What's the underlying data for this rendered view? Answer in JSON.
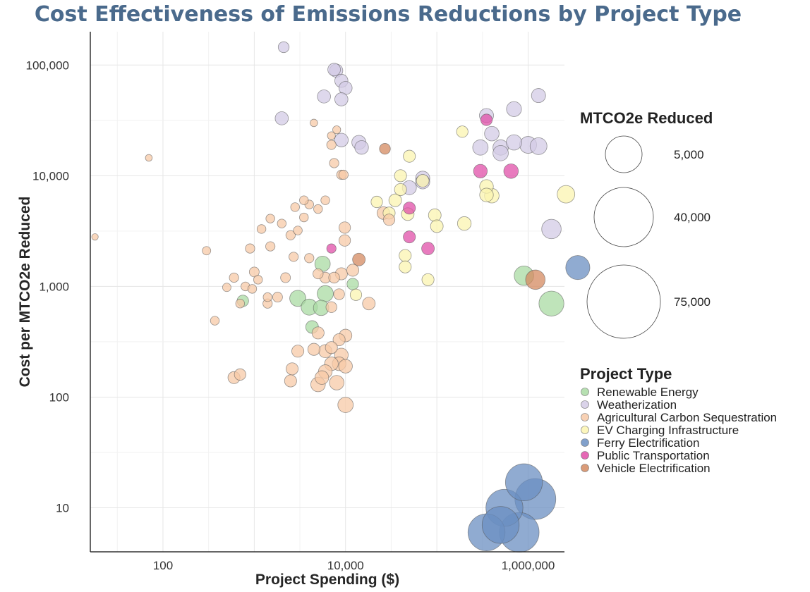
{
  "chart_data": {
    "type": "scatter",
    "title": "Cost Effectiveness of Emissions Reductions by Project Type",
    "xlabel": "Project Spending ($)",
    "ylabel": "Cost per MTCO2e Reduced",
    "x_scale": "log",
    "y_scale": "log",
    "xlim": [
      16,
      2500000
    ],
    "ylim": [
      4,
      200000
    ],
    "x_ticks": [
      {
        "value": 100,
        "label": "100"
      },
      {
        "value": 10000,
        "label": "10,000"
      },
      {
        "value": 1000000,
        "label": "1,000,000"
      }
    ],
    "y_ticks": [
      {
        "value": 10,
        "label": "10"
      },
      {
        "value": 100,
        "label": "100"
      },
      {
        "value": 1000,
        "label": "1,000"
      },
      {
        "value": 10000,
        "label": "10,000"
      },
      {
        "value": 100000,
        "label": "100,000"
      }
    ],
    "grid": true,
    "size_legend": {
      "title": "MTCO2e Reduced",
      "entries": [
        {
          "value": 5000,
          "label": "5,000"
        },
        {
          "value": 40000,
          "label": "40,000"
        },
        {
          "value": 75000,
          "label": "75,000"
        }
      ]
    },
    "color_legend_title": "Project Type",
    "series": [
      {
        "name": "Renewable Energy",
        "color": "#a9dba3",
        "points": [
          [
            3000,
            780,
            800
          ],
          [
            4000,
            650,
            800
          ],
          [
            5400,
            640,
            700
          ],
          [
            6000,
            860,
            800
          ],
          [
            5600,
            1600,
            700
          ],
          [
            4300,
            430,
            400
          ],
          [
            750,
            740,
            300
          ],
          [
            12000,
            1050,
            300
          ],
          [
            900000,
            1250,
            1300
          ],
          [
            1800000,
            700,
            2400
          ]
        ]
      },
      {
        "name": "Weatherization",
        "color": "#d3cbe5",
        "points": [
          [
            2100,
            145000,
            250
          ],
          [
            7900,
            89000,
            450
          ],
          [
            7500,
            91000,
            400
          ],
          [
            9000,
            72000,
            450
          ],
          [
            10000,
            62000,
            450
          ],
          [
            5800,
            52000,
            450
          ],
          [
            9000,
            49000,
            450
          ],
          [
            1300000,
            53000,
            550
          ],
          [
            700000,
            40000,
            650
          ],
          [
            350000,
            35000,
            550
          ],
          [
            2000,
            33000,
            450
          ],
          [
            400000,
            24000,
            600
          ],
          [
            9000,
            21000,
            500
          ],
          [
            14000,
            20000,
            550
          ],
          [
            300000,
            18000,
            700
          ],
          [
            500000,
            18000,
            700
          ],
          [
            700000,
            20000,
            700
          ],
          [
            1000000,
            19000,
            900
          ],
          [
            1300000,
            18500,
            900
          ],
          [
            500000,
            16000,
            700
          ],
          [
            15000,
            18000,
            500
          ],
          [
            70000,
            9500,
            550
          ],
          [
            70000,
            8800,
            550
          ],
          [
            50000,
            7800,
            550
          ],
          [
            1800000,
            3300,
            1300
          ]
        ]
      },
      {
        "name": "Agricultural Carbon Sequestration",
        "color": "#f7c9a7",
        "points": [
          [
            18,
            2800,
            30
          ],
          [
            70,
            14500,
            40
          ],
          [
            300,
            2100,
            100
          ],
          [
            370,
            490,
            120
          ],
          [
            500,
            980,
            100
          ],
          [
            600,
            1200,
            150
          ],
          [
            700,
            700,
            120
          ],
          [
            900,
            2200,
            150
          ],
          [
            1500,
            2300,
            150
          ],
          [
            2500,
            2900,
            150
          ],
          [
            3000,
            3200,
            120
          ],
          [
            3500,
            4200,
            120
          ],
          [
            5000,
            5000,
            120
          ],
          [
            6000,
            6000,
            120
          ],
          [
            4500,
            30000,
            60
          ],
          [
            8000,
            26000,
            80
          ],
          [
            7000,
            23000,
            80
          ],
          [
            4000,
            1800,
            150
          ],
          [
            1800,
            800,
            180
          ],
          [
            1400,
            700,
            150
          ],
          [
            2200,
            1200,
            180
          ],
          [
            1000,
            1350,
            180
          ],
          [
            5000,
            1300,
            200
          ],
          [
            6000,
            1200,
            250
          ],
          [
            7500,
            1200,
            250
          ],
          [
            8500,
            850,
            250
          ],
          [
            7000,
            650,
            250
          ],
          [
            5000,
            380,
            350
          ],
          [
            8500,
            330,
            350
          ],
          [
            10000,
            360,
            400
          ],
          [
            7000,
            280,
            350
          ],
          [
            6000,
            260,
            450
          ],
          [
            9000,
            240,
            500
          ],
          [
            8500,
            200,
            500
          ],
          [
            7000,
            200,
            500
          ],
          [
            10000,
            190,
            500
          ],
          [
            6000,
            170,
            500
          ],
          [
            5500,
            150,
            500
          ],
          [
            8000,
            135,
            600
          ],
          [
            5000,
            130,
            600
          ],
          [
            3000,
            260,
            350
          ],
          [
            4500,
            270,
            350
          ],
          [
            2600,
            180,
            350
          ],
          [
            2500,
            140,
            350
          ],
          [
            600,
            150,
            350
          ],
          [
            700,
            160,
            300
          ],
          [
            9000,
            10200,
            150
          ],
          [
            9500,
            10200,
            150
          ],
          [
            9800,
            3400,
            300
          ],
          [
            9800,
            2600,
            300
          ],
          [
            7000,
            19000,
            150
          ],
          [
            7500,
            13000,
            150
          ],
          [
            4000,
            5500,
            120
          ],
          [
            3500,
            6000,
            120
          ],
          [
            2800,
            5200,
            120
          ],
          [
            10000,
            85,
            700
          ],
          [
            9000,
            1300,
            350
          ],
          [
            12000,
            1400,
            350
          ],
          [
            18000,
            700,
            400
          ],
          [
            26000,
            4600,
            400
          ],
          [
            30000,
            4000,
            300
          ],
          [
            2700,
            1850,
            150
          ],
          [
            2000,
            3700,
            120
          ],
          [
            1500,
            4100,
            120
          ],
          [
            1200,
            3300,
            120
          ],
          [
            800,
            1000,
            120
          ],
          [
            950,
            950,
            120
          ],
          [
            1100,
            1150,
            120
          ],
          [
            1400,
            800,
            120
          ]
        ]
      },
      {
        "name": "EV Charging Infrastructure",
        "color": "#fbf4b0",
        "points": [
          [
            190000,
            25000,
            300
          ],
          [
            22000,
            5800,
            300
          ],
          [
            35000,
            6000,
            400
          ],
          [
            40000,
            7500,
            350
          ],
          [
            50000,
            15000,
            350
          ],
          [
            40000,
            10000,
            350
          ],
          [
            70000,
            9000,
            400
          ],
          [
            95000,
            4400,
            400
          ],
          [
            48000,
            4500,
            400
          ],
          [
            100000,
            3500,
            400
          ],
          [
            200000,
            3700,
            500
          ],
          [
            45000,
            1900,
            350
          ],
          [
            45000,
            1500,
            350
          ],
          [
            80000,
            1150,
            350
          ],
          [
            350000,
            8000,
            500
          ],
          [
            350000,
            6700,
            500
          ],
          [
            400000,
            6600,
            600
          ],
          [
            2600000,
            6800,
            1000
          ],
          [
            13000,
            840,
            300
          ],
          [
            30000,
            4600,
            350
          ]
        ]
      },
      {
        "name": "Ferry Electrification",
        "color": "#6b8fc2",
        "points": [
          [
            3500000,
            1480,
            2200
          ],
          [
            550000,
            10,
            6000
          ],
          [
            900000,
            17,
            6000
          ],
          [
            1200000,
            12,
            7500
          ],
          [
            350000,
            6,
            6000
          ],
          [
            800000,
            6,
            7000
          ],
          [
            500000,
            7,
            6000
          ]
        ]
      },
      {
        "name": "Public Transportation",
        "color": "#e04fa8",
        "points": [
          [
            350000,
            32000,
            300
          ],
          [
            650000,
            11000,
            600
          ],
          [
            300000,
            11000,
            500
          ],
          [
            50000,
            5100,
            350
          ],
          [
            50000,
            2800,
            350
          ],
          [
            80000,
            2200,
            400
          ],
          [
            7000,
            2200,
            150
          ]
        ]
      },
      {
        "name": "Vehicle Electrification",
        "color": "#d48a60",
        "points": [
          [
            27000,
            17500,
            250
          ],
          [
            14000,
            1750,
            400
          ],
          [
            1200000,
            1150,
            1300
          ]
        ]
      }
    ]
  }
}
